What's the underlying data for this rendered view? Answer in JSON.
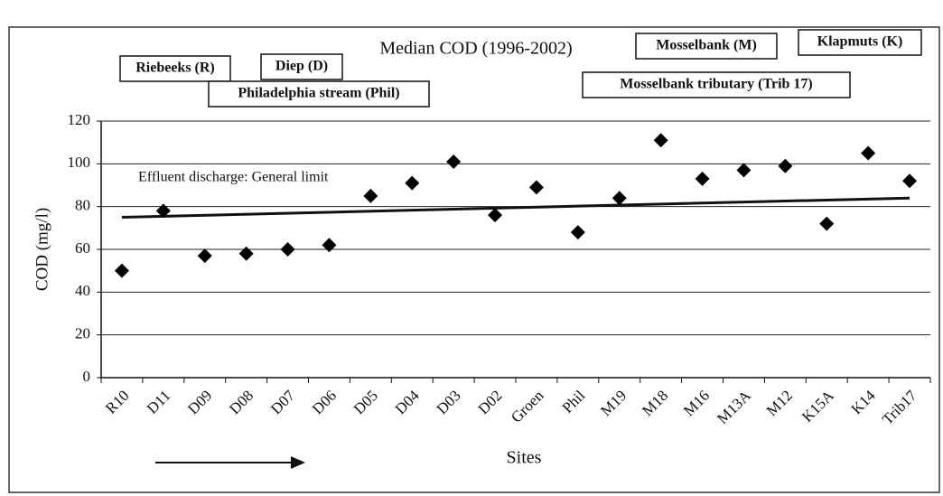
{
  "chart_data": {
    "type": "scatter",
    "title": "Median COD (1996-2002)",
    "x_label": "Sites",
    "y_label": "COD (mg/l)",
    "categories": [
      "R10",
      "D11",
      "D09",
      "D08",
      "D07",
      "D06",
      "D05",
      "D04",
      "D03",
      "D02",
      "Groen",
      "Phil",
      "M19",
      "M18",
      "M16",
      "M13A",
      "M12",
      "K15A",
      "K14",
      "Trib17"
    ],
    "values": [
      50,
      78,
      57,
      58,
      60,
      62,
      85,
      91,
      101,
      76,
      89,
      68,
      84,
      111,
      93,
      97,
      99,
      72,
      105,
      92
    ],
    "color": "#000000",
    "ylim": [
      0,
      120
    ],
    "yticks": [
      0,
      20,
      40,
      60,
      80,
      100,
      120
    ],
    "grid": true,
    "reference_line": {
      "label": "Effluent discharge: General limit",
      "start": 75,
      "end": 84
    },
    "annotations": [
      "Riebeeks (R)",
      "Diep (D)",
      "Philadelphia stream (Phil)",
      "Mosselbank (M)",
      "Klapmuts (K)",
      "Mosselbank tributary (Trib 17)"
    ]
  }
}
